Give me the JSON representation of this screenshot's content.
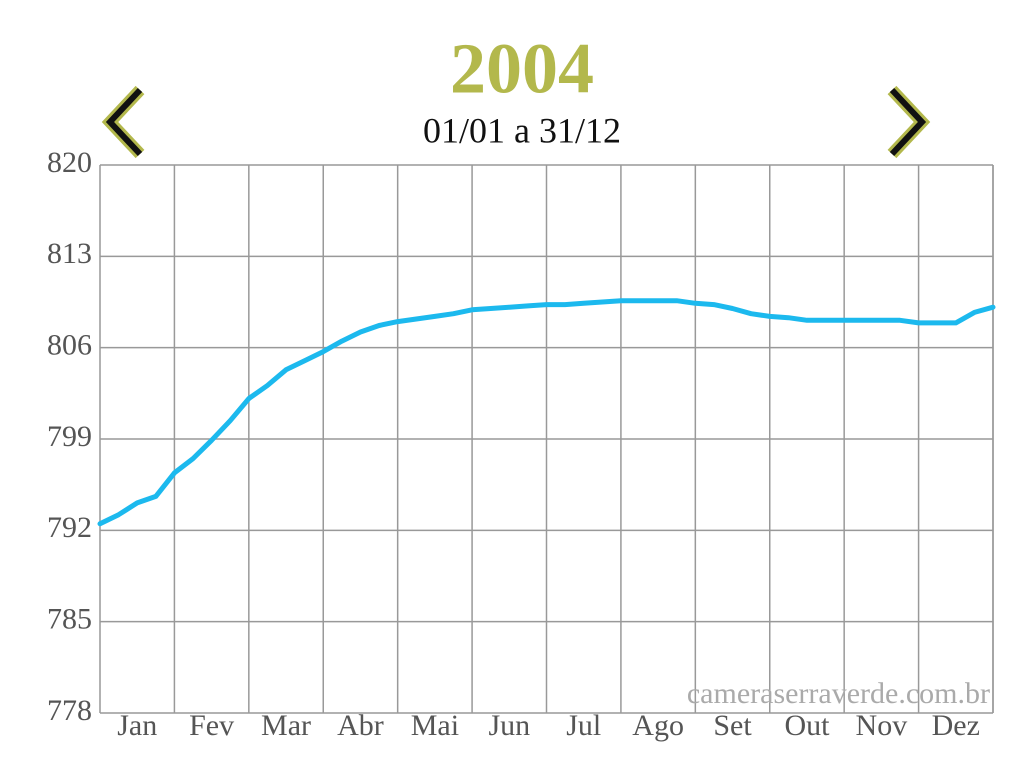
{
  "chart_data": {
    "type": "line",
    "title": "2004",
    "subtitle": "01/01 a 31/12",
    "watermark": "cameraserraverde.com.br",
    "categories": [
      null,
      null,
      "Jan",
      null,
      null,
      null,
      "Fev",
      null,
      null,
      null,
      "Mar",
      null,
      null,
      null,
      "Abr",
      null,
      null,
      null,
      "Mai",
      null,
      null,
      null,
      "Jun",
      null,
      null,
      null,
      "Jul",
      null,
      null,
      null,
      "Ago",
      null,
      null,
      null,
      "Set",
      null,
      null,
      null,
      "Out",
      null,
      null,
      null,
      "Nov",
      null,
      null,
      null,
      "Dez",
      null,
      null
    ],
    "values": [
      792.5,
      793.2,
      794.1,
      794.6,
      796.4,
      797.5,
      798.9,
      800.4,
      802.1,
      803.1,
      804.3,
      805.0,
      805.7,
      806.5,
      807.2,
      807.7,
      808.0,
      808.2,
      808.4,
      808.6,
      808.9,
      809.0,
      809.1,
      809.2,
      809.3,
      809.3,
      809.4,
      809.5,
      809.6,
      809.6,
      809.6,
      809.6,
      809.4,
      809.3,
      809.0,
      808.6,
      808.4,
      808.3,
      808.1,
      808.1,
      808.1,
      808.1,
      808.1,
      808.1,
      807.9,
      807.9,
      807.9,
      808.7,
      809.1
    ],
    "color": "#1cb9ee",
    "ylim": [
      778,
      820
    ],
    "yticks": [
      778,
      785,
      792,
      799,
      806,
      813,
      820
    ],
    "grid": true
  }
}
